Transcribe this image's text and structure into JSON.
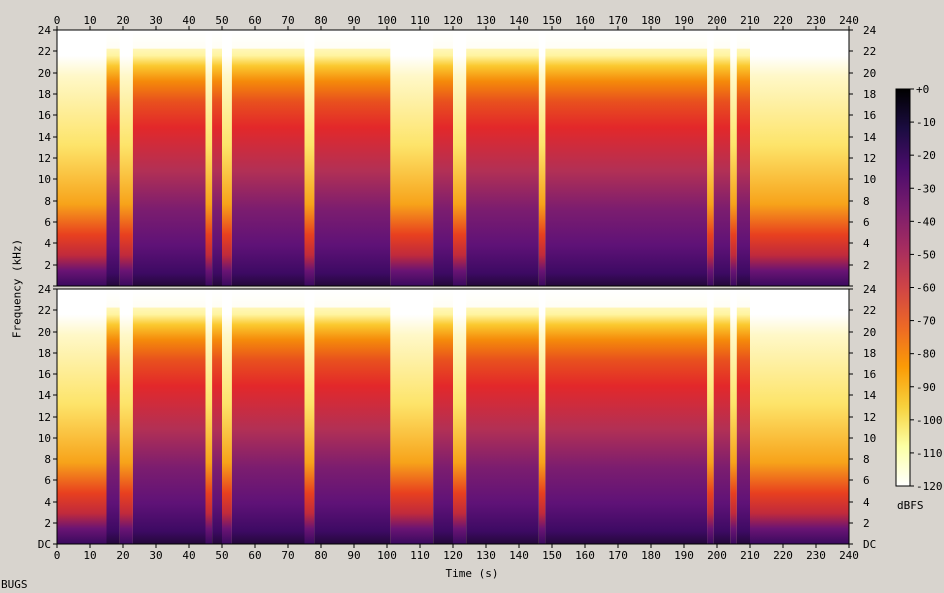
{
  "chart_data": {
    "type": "heatmap",
    "title": "",
    "xlabel": "Time (s)",
    "ylabel": "Frequency (kHz)",
    "x_range": [
      0,
      240
    ],
    "x_ticks": [
      0,
      10,
      20,
      30,
      40,
      50,
      60,
      70,
      80,
      90,
      100,
      110,
      120,
      130,
      140,
      150,
      160,
      170,
      180,
      190,
      200,
      210,
      220,
      230,
      240
    ],
    "y_range_khz": [
      0,
      24
    ],
    "y_tick_labels": [
      "DC",
      "2",
      "4",
      "6",
      "8",
      "10",
      "12",
      "14",
      "16",
      "18",
      "20",
      "22",
      "24"
    ],
    "channels": 2,
    "colorbar": {
      "unit": "dBFS",
      "range": [
        -120,
        0
      ],
      "tick_labels": [
        "+0",
        "-10",
        "-20",
        "-30",
        "-40",
        "-50",
        "-60",
        "-70",
        "-80",
        "-90",
        "-100",
        "-110",
        "-120"
      ],
      "colormap": [
        "#000000",
        "#1b0c41",
        "#4a0c6b",
        "#781c6d",
        "#a52c60",
        "#cf4446",
        "#ed6925",
        "#fb9b06",
        "#f7d13d",
        "#fcffa4",
        "#ffffff"
      ]
    },
    "grid": false,
    "bandwidth_khz_approx": 21.5,
    "loud_segments_s": [
      [
        15,
        19
      ],
      [
        23,
        45
      ],
      [
        47,
        50
      ],
      [
        53,
        75
      ],
      [
        78,
        101
      ],
      [
        114,
        120
      ],
      [
        124,
        146
      ],
      [
        148,
        197
      ],
      [
        199,
        204
      ],
      [
        206,
        210
      ]
    ],
    "quiet_segments_s": [
      [
        0,
        15
      ],
      [
        19,
        23
      ],
      [
        45,
        47
      ],
      [
        50,
        53
      ],
      [
        75,
        78
      ],
      [
        101,
        114
      ],
      [
        120,
        124
      ],
      [
        146,
        148
      ],
      [
        197,
        199
      ],
      [
        204,
        206
      ],
      [
        210,
        240
      ]
    ]
  },
  "footer": {
    "tag": "BUGS"
  }
}
